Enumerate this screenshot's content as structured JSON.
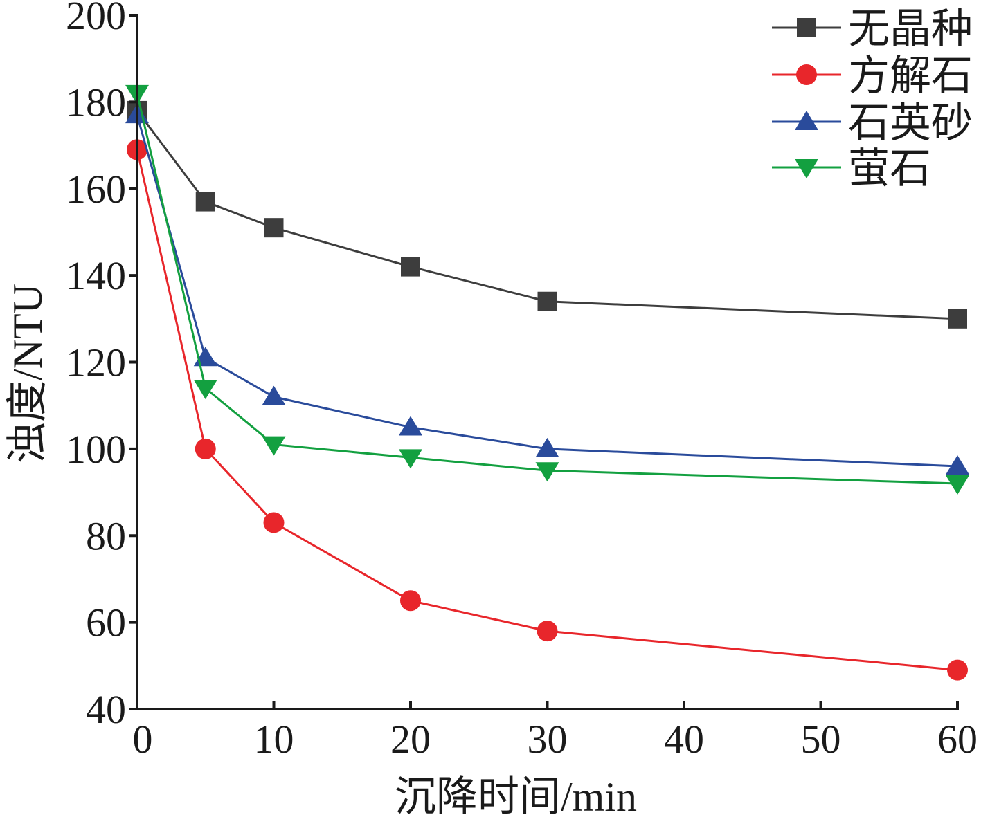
{
  "chart_data": {
    "type": "line",
    "title": "",
    "xlabel": "沉降时间/min",
    "ylabel": "浊度/NTU",
    "xlim": [
      0,
      60
    ],
    "ylim": [
      40,
      200
    ],
    "xticks": [
      0,
      10,
      20,
      30,
      40,
      50,
      60
    ],
    "yticks": [
      40,
      60,
      80,
      100,
      120,
      140,
      160,
      180,
      200
    ],
    "grid": false,
    "legend_position": "top-right",
    "x": [
      0,
      5,
      10,
      20,
      30,
      60
    ],
    "series": [
      {
        "name": "无晶种",
        "color": "#3d3d3d",
        "marker": "square",
        "values": [
          178,
          157,
          151,
          142,
          134,
          130
        ]
      },
      {
        "name": "方解石",
        "color": "#e8262b",
        "marker": "circle",
        "values": [
          169,
          100,
          83,
          65,
          58,
          49
        ]
      },
      {
        "name": "石英砂",
        "color": "#2a4b9b",
        "marker": "triangle-up",
        "values": [
          177,
          121,
          112,
          105,
          100,
          96
        ]
      },
      {
        "name": "萤石",
        "color": "#13a040",
        "marker": "triangle-down",
        "values": [
          182,
          114,
          101,
          98,
          95,
          92
        ]
      }
    ]
  }
}
